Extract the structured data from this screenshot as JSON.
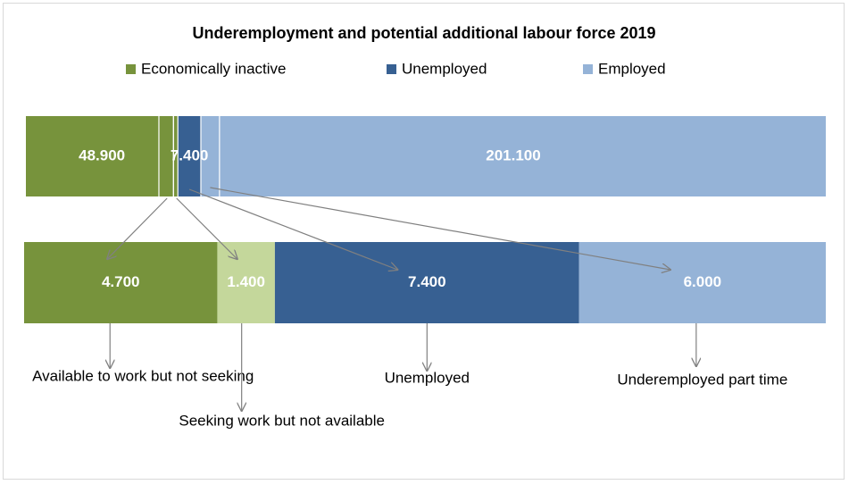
{
  "chart_data": [
    {
      "type": "stacked-bar",
      "title": "Underemployment and potential additional labour force 2019",
      "legend": "top",
      "series": [
        {
          "name": "Economically inactive",
          "color": "#77933c",
          "values": [
            48900
          ],
          "value_labels": [
            "48.900"
          ]
        },
        {
          "name": "Unemployed",
          "color": "#376092",
          "values": [
            7400
          ],
          "value_labels": [
            "7.400"
          ]
        },
        {
          "name": "Employed",
          "color": "#95b3d7",
          "values": [
            201100
          ],
          "value_labels": [
            "201.100"
          ]
        }
      ]
    },
    {
      "type": "stacked-bar",
      "categories": [
        "Available to work but not seeking",
        "Seeking work but not available",
        "Unemployed",
        "Underemployed part time"
      ],
      "values": [
        4700,
        1400,
        7400,
        6000
      ],
      "value_labels": [
        "4.700",
        "1.400",
        "7.400",
        "6.000"
      ],
      "colors": [
        "#77933c",
        "#c4d79b",
        "#376092",
        "#95b3d7"
      ]
    }
  ]
}
